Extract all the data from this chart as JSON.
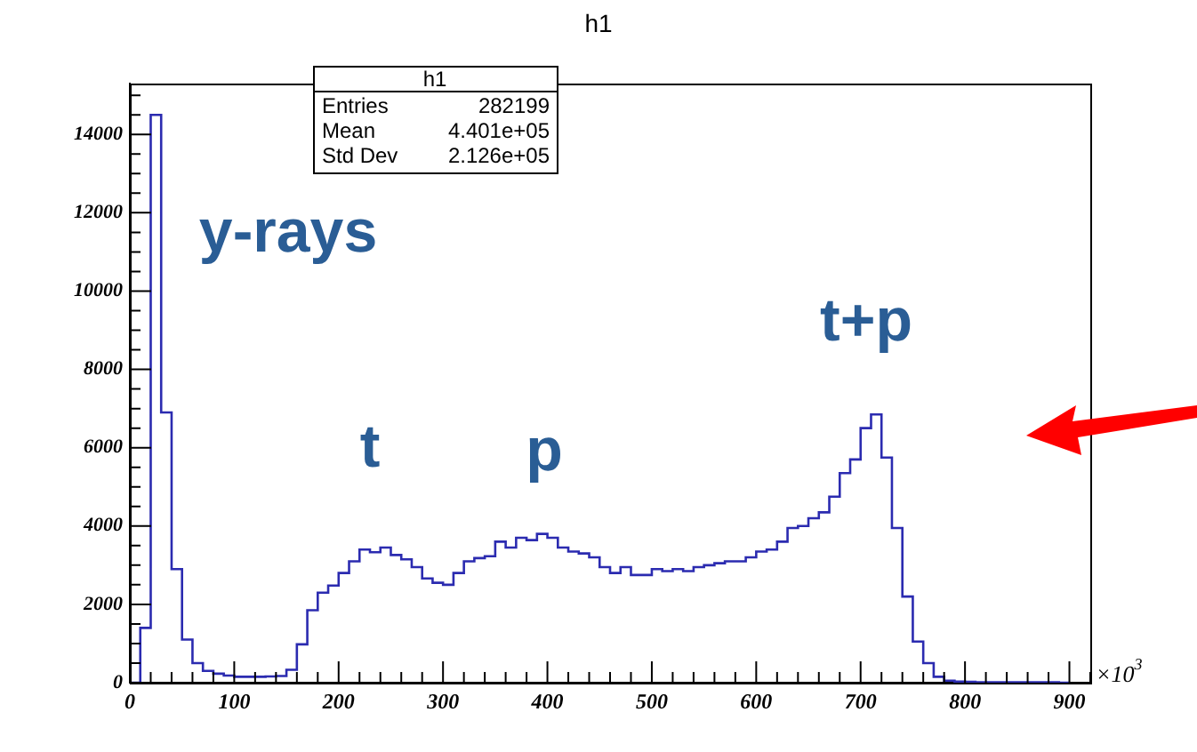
{
  "chart_data": {
    "type": "histogram",
    "title": "h1",
    "bins": [
      0,
      10,
      20,
      30,
      40,
      50,
      60,
      70,
      80,
      90,
      100,
      110,
      120,
      130,
      140,
      150,
      160,
      170,
      180,
      190,
      200,
      210,
      220,
      230,
      240,
      250,
      260,
      270,
      280,
      290,
      300,
      310,
      320,
      330,
      340,
      350,
      360,
      370,
      380,
      390,
      400,
      410,
      420,
      430,
      440,
      450,
      460,
      470,
      480,
      490,
      500,
      510,
      520,
      530,
      540,
      550,
      560,
      570,
      580,
      590,
      600,
      610,
      620,
      630,
      640,
      650,
      660,
      670,
      680,
      690,
      700,
      710,
      720,
      730,
      740,
      750,
      760,
      770,
      780,
      790,
      800,
      810,
      820,
      830,
      840,
      850,
      860,
      870,
      880,
      890,
      900
    ],
    "values": [
      0,
      1400,
      14500,
      6900,
      2900,
      1100,
      500,
      300,
      230,
      180,
      150,
      150,
      150,
      160,
      170,
      330,
      980,
      1850,
      2300,
      2480,
      2800,
      3100,
      3400,
      3330,
      3450,
      3260,
      3150,
      2950,
      2660,
      2550,
      2500,
      2800,
      3100,
      3180,
      3230,
      3600,
      3450,
      3700,
      3640,
      3800,
      3700,
      3450,
      3350,
      3300,
      3200,
      2950,
      2800,
      2950,
      2750,
      2750,
      2900,
      2850,
      2900,
      2850,
      2950,
      3000,
      3050,
      3100,
      3100,
      3200,
      3350,
      3400,
      3600,
      3950,
      4000,
      4200,
      4350,
      4750,
      5350,
      5700,
      6500,
      6850,
      5750,
      3950,
      2200,
      1050,
      500,
      150,
      50,
      30,
      20,
      10,
      10,
      10,
      10,
      10,
      10,
      10,
      10,
      0
    ],
    "color": "#2b2bb0",
    "xlim": [
      0,
      920
    ],
    "xticks": [
      0,
      100,
      200,
      300,
      400,
      500,
      600,
      700,
      800,
      900
    ],
    "ylim": [
      0,
      15300
    ],
    "yticks": [
      0,
      2000,
      4000,
      6000,
      8000,
      10000,
      12000,
      14000
    ],
    "grid": false,
    "annotations": [
      "y-rays",
      "t",
      "p",
      "t+p",
      "×10$^{3}$",
      "h1",
      "Entries",
      "282199",
      "Mean",
      "4.401e+05",
      "Std Dev",
      "2.126e+05"
    ]
  }
}
